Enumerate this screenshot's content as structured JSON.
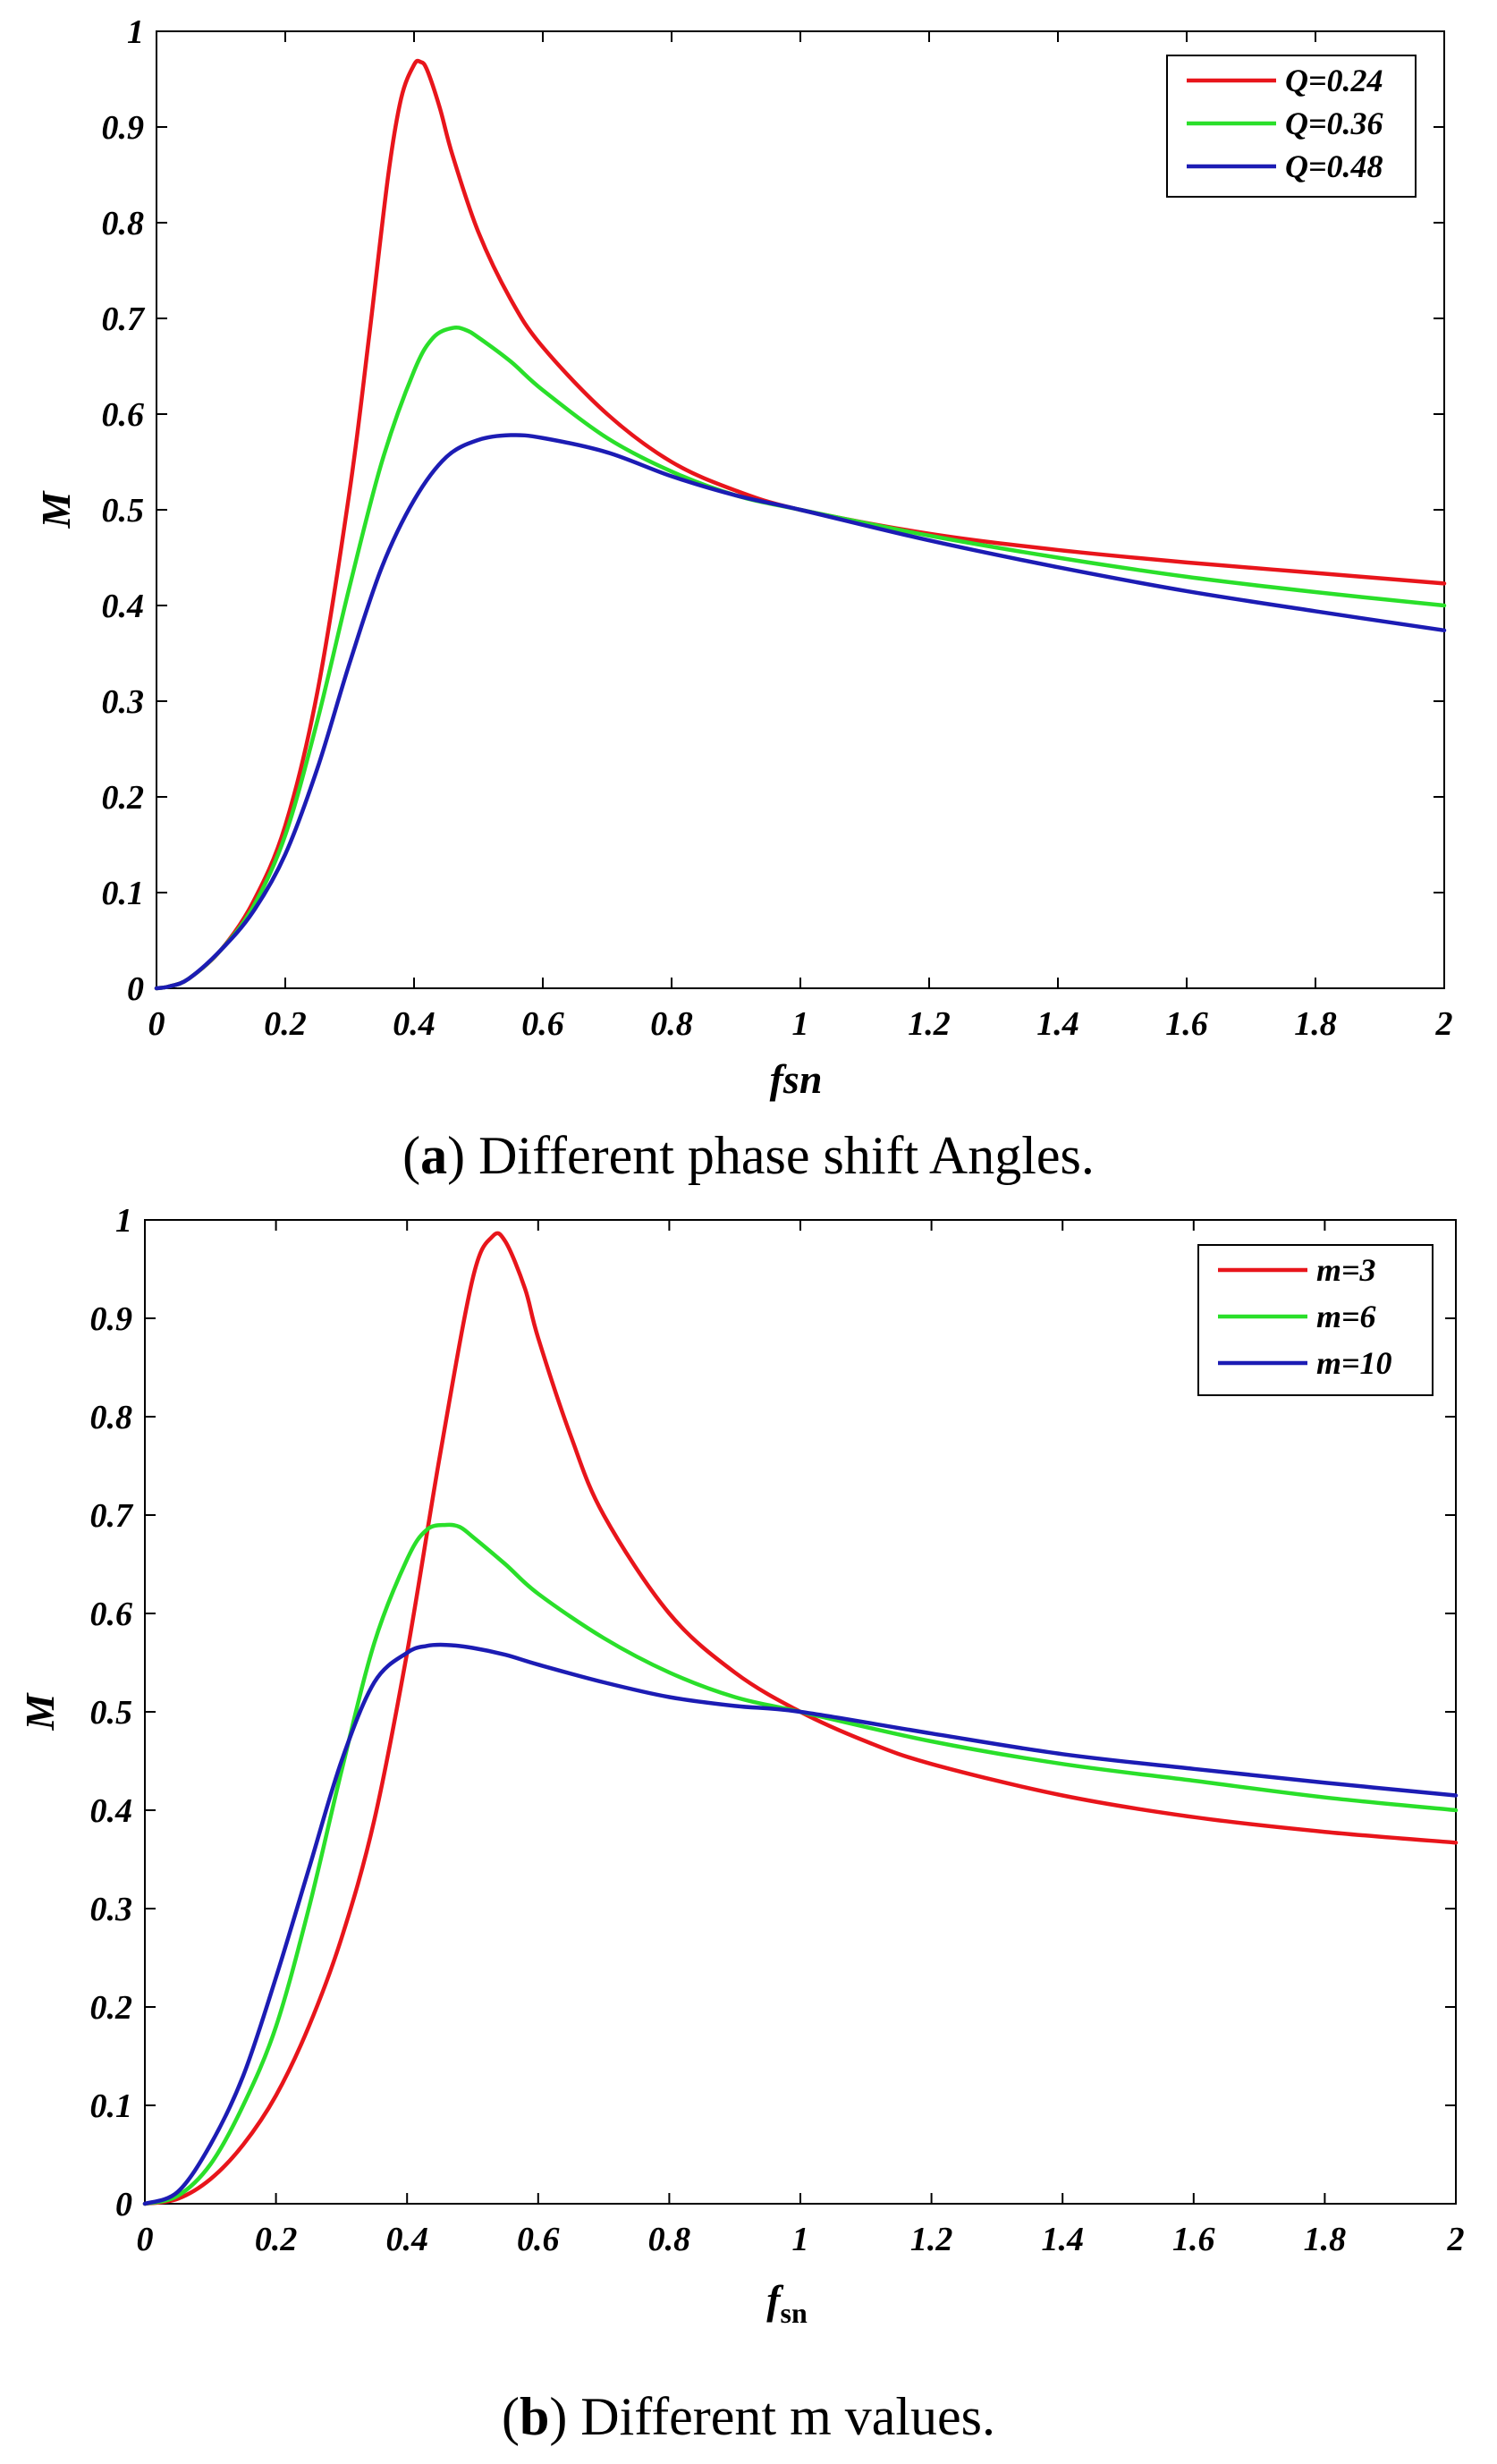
{
  "chart_data": [
    {
      "type": "line",
      "panel": "a",
      "caption_letter": "a",
      "caption_open": "(",
      "caption_text": ") Different phase shift Angles.",
      "xlabel": "fsn",
      "xlabel_main": "fsn",
      "xlabel_sub": "",
      "ylabel": "M",
      "xlim": [
        0,
        2
      ],
      "ylim": [
        0,
        1
      ],
      "xticks": [
        "0",
        "0.2",
        "0.4",
        "0.6",
        "0.8",
        "1",
        "1.2",
        "1.4",
        "1.6",
        "1.8",
        "2"
      ],
      "yticks": [
        "0",
        "0.1",
        "0.2",
        "0.3",
        "0.4",
        "0.5",
        "0.6",
        "0.7",
        "0.8",
        "0.9",
        "1"
      ],
      "legend_position": "top-right",
      "series": [
        {
          "name": "Q=0.24",
          "color": "#e8151b",
          "x": [
            0,
            0.02,
            0.05,
            0.1,
            0.15,
            0.2,
            0.25,
            0.3,
            0.33,
            0.36,
            0.38,
            0.4,
            0.41,
            0.42,
            0.44,
            0.46,
            0.5,
            0.55,
            0.6,
            0.7,
            0.8,
            0.9,
            1.0,
            1.2,
            1.4,
            1.6,
            1.8,
            2.0
          ],
          "y": [
            0,
            0.002,
            0.01,
            0.04,
            0.09,
            0.17,
            0.31,
            0.52,
            0.68,
            0.85,
            0.93,
            0.965,
            0.968,
            0.96,
            0.92,
            0.87,
            0.79,
            0.72,
            0.67,
            0.6,
            0.55,
            0.52,
            0.5,
            0.475,
            0.458,
            0.445,
            0.434,
            0.423
          ]
        },
        {
          "name": "Q=0.36",
          "color": "#2adf2a",
          "x": [
            0,
            0.02,
            0.05,
            0.1,
            0.15,
            0.2,
            0.25,
            0.3,
            0.35,
            0.4,
            0.43,
            0.46,
            0.48,
            0.5,
            0.55,
            0.6,
            0.7,
            0.8,
            0.9,
            1.0,
            1.2,
            1.4,
            1.6,
            1.8,
            2.0
          ],
          "y": [
            0,
            0.002,
            0.01,
            0.04,
            0.085,
            0.16,
            0.28,
            0.42,
            0.55,
            0.645,
            0.68,
            0.69,
            0.688,
            0.68,
            0.655,
            0.625,
            0.575,
            0.54,
            0.515,
            0.5,
            0.473,
            0.45,
            0.43,
            0.414,
            0.4
          ]
        },
        {
          "name": "Q=0.48",
          "color": "#1c1cb4",
          "x": [
            0,
            0.02,
            0.05,
            0.1,
            0.15,
            0.2,
            0.25,
            0.3,
            0.35,
            0.4,
            0.45,
            0.5,
            0.55,
            0.6,
            0.7,
            0.8,
            0.9,
            1.0,
            1.2,
            1.4,
            1.6,
            1.8,
            2.0
          ],
          "y": [
            0,
            0.002,
            0.01,
            0.04,
            0.08,
            0.14,
            0.23,
            0.34,
            0.44,
            0.51,
            0.555,
            0.573,
            0.578,
            0.575,
            0.56,
            0.535,
            0.515,
            0.5,
            0.468,
            0.44,
            0.415,
            0.394,
            0.374
          ]
        }
      ]
    },
    {
      "type": "line",
      "panel": "b",
      "caption_letter": "b",
      "caption_open": "(",
      "caption_text": ") Different m values.",
      "xlabel": "fsn",
      "xlabel_main": "f",
      "xlabel_sub": "sn",
      "ylabel": "M",
      "xlim": [
        0,
        2
      ],
      "ylim": [
        0,
        1
      ],
      "xticks": [
        "0",
        "0.2",
        "0.4",
        "0.6",
        "0.8",
        "1",
        "1.2",
        "1.4",
        "1.6",
        "1.8",
        "2"
      ],
      "yticks": [
        "0",
        "0.1",
        "0.2",
        "0.3",
        "0.4",
        "0.5",
        "0.6",
        "0.7",
        "0.8",
        "0.9",
        "1"
      ],
      "legend_position": "top-right",
      "series": [
        {
          "name": "m=3",
          "color": "#e8151b",
          "x": [
            0,
            0.05,
            0.1,
            0.15,
            0.2,
            0.25,
            0.3,
            0.35,
            0.4,
            0.45,
            0.5,
            0.53,
            0.55,
            0.58,
            0.6,
            0.65,
            0.7,
            0.8,
            0.9,
            1.0,
            1.1,
            1.2,
            1.4,
            1.6,
            1.8,
            2.0
          ],
          "y": [
            0,
            0.005,
            0.025,
            0.06,
            0.11,
            0.18,
            0.27,
            0.39,
            0.56,
            0.76,
            0.94,
            0.983,
            0.978,
            0.93,
            0.88,
            0.78,
            0.7,
            0.6,
            0.54,
            0.5,
            0.47,
            0.447,
            0.415,
            0.393,
            0.378,
            0.367
          ]
        },
        {
          "name": "m=6",
          "color": "#2adf2a",
          "x": [
            0,
            0.05,
            0.1,
            0.15,
            0.2,
            0.25,
            0.3,
            0.35,
            0.4,
            0.43,
            0.46,
            0.48,
            0.5,
            0.55,
            0.6,
            0.7,
            0.8,
            0.9,
            1.0,
            1.2,
            1.4,
            1.6,
            1.8,
            2.0
          ],
          "y": [
            0,
            0.008,
            0.04,
            0.1,
            0.18,
            0.3,
            0.44,
            0.57,
            0.655,
            0.685,
            0.69,
            0.688,
            0.678,
            0.65,
            0.62,
            0.575,
            0.54,
            0.515,
            0.5,
            0.47,
            0.447,
            0.43,
            0.413,
            0.4
          ]
        },
        {
          "name": "m=10",
          "color": "#1c1cb4",
          "x": [
            0,
            0.05,
            0.1,
            0.15,
            0.2,
            0.25,
            0.3,
            0.35,
            0.4,
            0.43,
            0.46,
            0.5,
            0.55,
            0.6,
            0.7,
            0.8,
            0.9,
            1.0,
            1.2,
            1.4,
            1.6,
            1.8,
            2.0
          ],
          "y": [
            0,
            0.012,
            0.06,
            0.13,
            0.23,
            0.34,
            0.45,
            0.53,
            0.56,
            0.567,
            0.568,
            0.565,
            0.558,
            0.548,
            0.53,
            0.515,
            0.506,
            0.5,
            0.478,
            0.457,
            0.442,
            0.428,
            0.415
          ]
        }
      ]
    }
  ]
}
